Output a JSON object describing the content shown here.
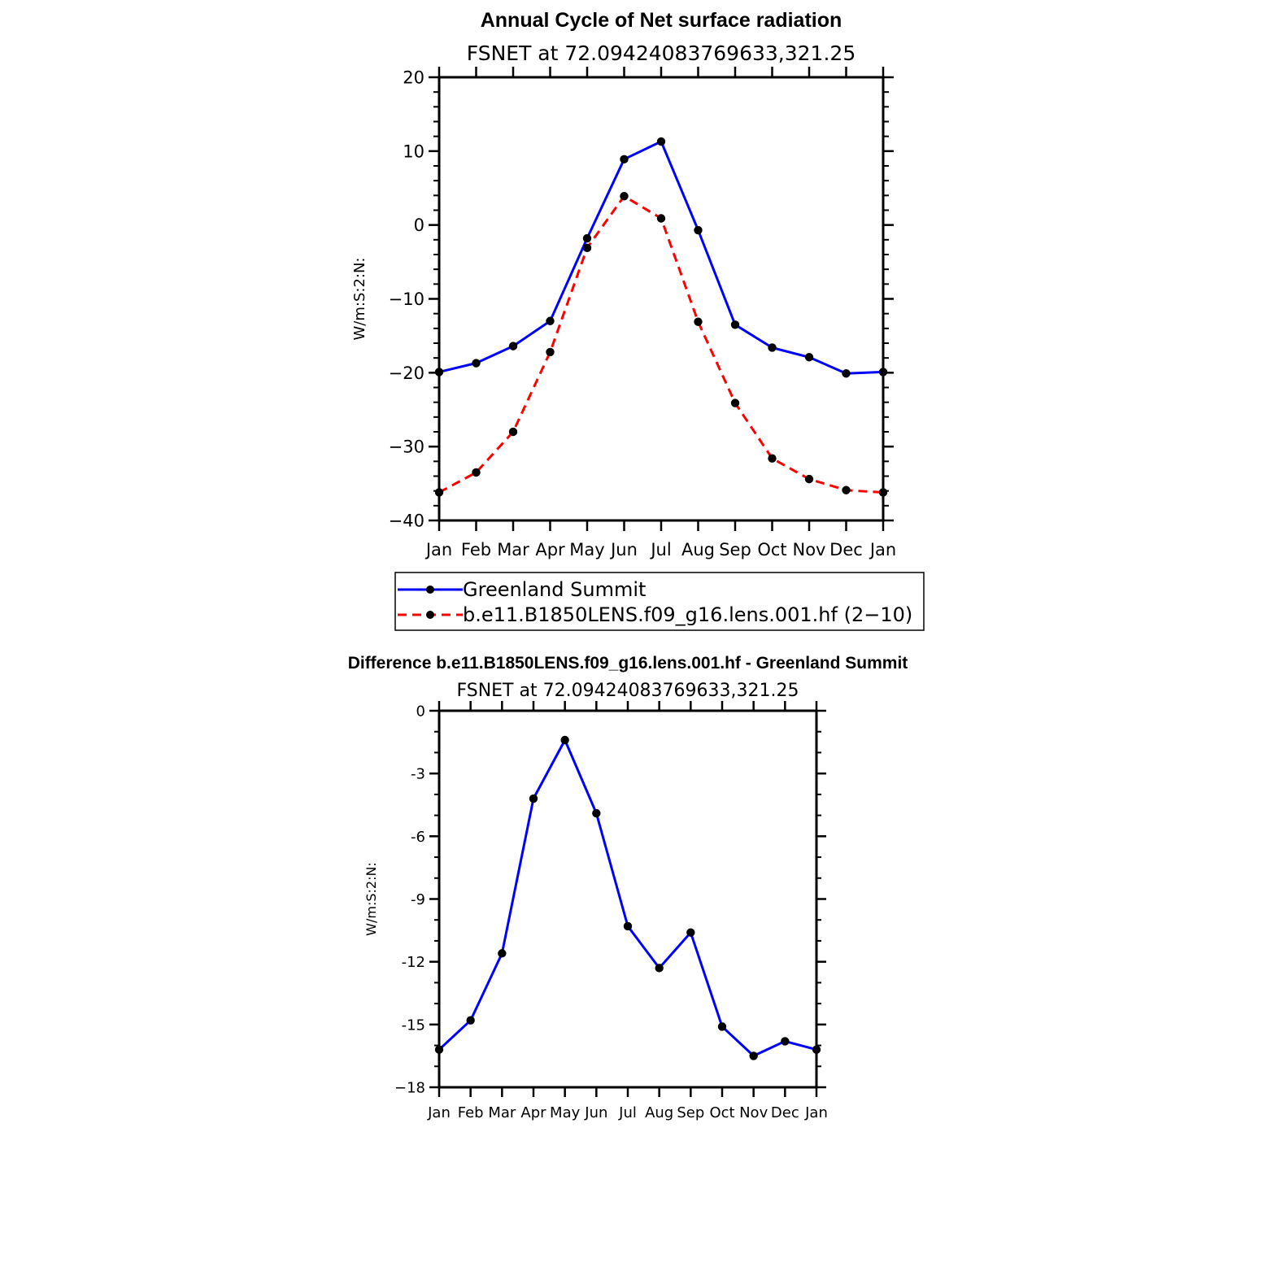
{
  "chart_data": [
    {
      "type": "line",
      "title": "Annual Cycle of Net surface radiation",
      "subtitle": "FSNET at 72.09424083769633,321.25",
      "ylabel": "W/m:S:2:N:",
      "ylim": [
        -40,
        20
      ],
      "yticks": [
        "20",
        "10",
        "0",
        "−10",
        "−20",
        "−30",
        "−40"
      ],
      "categories": [
        "Jan",
        "Feb",
        "Mar",
        "Apr",
        "May",
        "Jun",
        "Jul",
        "Aug",
        "Sep",
        "Oct",
        "Nov",
        "Dec",
        "Jan"
      ],
      "series": [
        {
          "name": "Greenland Summit",
          "color": "#0000ff",
          "style": "solid",
          "values": [
            -19.9,
            -18.7,
            -16.4,
            -13.0,
            -1.8,
            8.9,
            11.3,
            -0.7,
            -13.5,
            -16.6,
            -17.9,
            -20.1,
            -19.9
          ]
        },
        {
          "name": "b.e11.B1850LENS.f09_g16.lens.001.hf (2−10)",
          "color": "#ff0000",
          "style": "dashed",
          "values": [
            -36.2,
            -33.5,
            -28.0,
            -17.2,
            -3.1,
            3.9,
            0.9,
            -13.1,
            -24.1,
            -31.6,
            -34.4,
            -35.9,
            -36.2
          ]
        }
      ],
      "grid": false,
      "legend_position": "below"
    },
    {
      "type": "line",
      "title": "Difference b.e11.B1850LENS.f09_g16.lens.001.hf - Greenland Summit",
      "subtitle": "FSNET at 72.09424083769633,321.25",
      "ylabel": "W/m:S:2:N:",
      "ylim": [
        -18,
        0
      ],
      "yticks": [
        "0",
        "-3",
        "-6",
        "-9",
        "-12",
        "-15",
        "−18"
      ],
      "categories": [
        "Jan",
        "Feb",
        "Mar",
        "Apr",
        "May",
        "Jun",
        "Jul",
        "Aug",
        "Sep",
        "Oct",
        "Nov",
        "Dec",
        "Jan"
      ],
      "series": [
        {
          "color": "#0000ff",
          "style": "solid",
          "values": [
            -16.2,
            -14.8,
            -11.6,
            -4.2,
            -1.4,
            -4.9,
            -10.3,
            -12.3,
            -10.6,
            -15.1,
            -16.5,
            -15.8,
            -16.2
          ]
        }
      ],
      "grid": false
    }
  ]
}
